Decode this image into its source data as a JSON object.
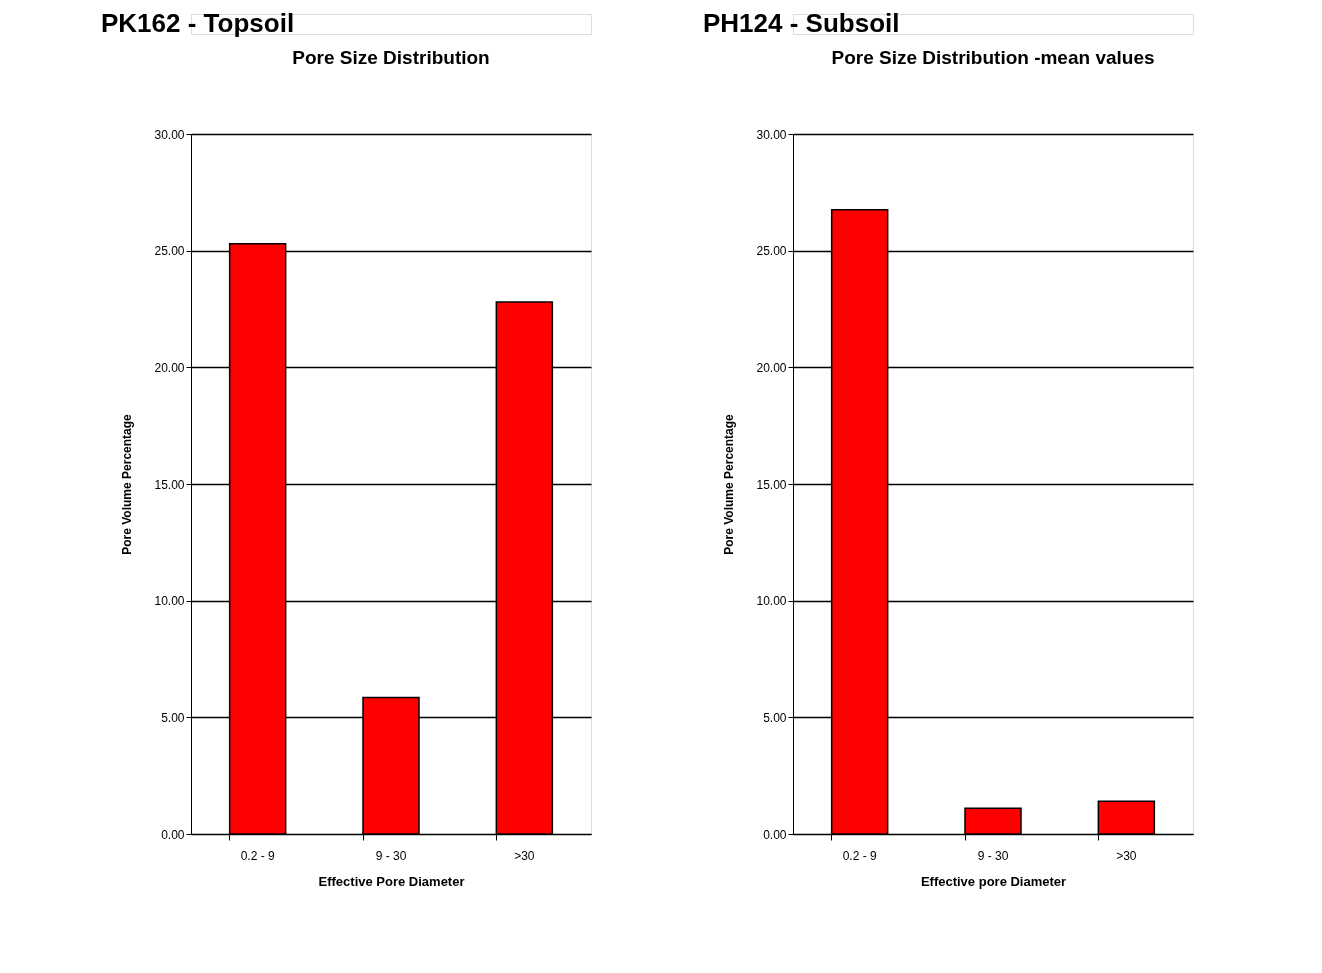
{
  "chart_data": [
    {
      "type": "bar",
      "title": "PK162 - Topsoil",
      "subtitle": "Pore Size Distribution",
      "xlabel": "Effective Pore Diameter",
      "ylabel": "Pore Volume Percentage",
      "categories": [
        "0.2 - 9",
        "9 - 30",
        ">30"
      ],
      "values": [
        25.3,
        5.85,
        22.8
      ],
      "color": "#ff0000",
      "ylim": [
        0,
        30
      ],
      "yticks": [
        {
          "value": 0,
          "label": "0.00"
        },
        {
          "value": 5,
          "label": "5.00"
        },
        {
          "value": 10,
          "label": "10.00"
        },
        {
          "value": 15,
          "label": "15.00"
        },
        {
          "value": 20,
          "label": "20.00"
        },
        {
          "value": 25,
          "label": "25.00"
        },
        {
          "value": 30,
          "label": "30.00"
        }
      ],
      "grid": "y"
    },
    {
      "type": "bar",
      "title": "PH124 - Subsoil",
      "subtitle": "Pore Size Distribution -mean values",
      "xlabel": "Effective pore Diameter",
      "ylabel": "Pore Volume Percentage",
      "categories": [
        "0.2 - 9",
        "9 - 30",
        ">30"
      ],
      "values": [
        26.75,
        1.1,
        1.4
      ],
      "color": "#ff0000",
      "ylim": [
        0,
        30
      ],
      "yticks": [
        {
          "value": 0,
          "label": "0.00"
        },
        {
          "value": 5,
          "label": "5.00"
        },
        {
          "value": 10,
          "label": "10.00"
        },
        {
          "value": 15,
          "label": "15.00"
        },
        {
          "value": 20,
          "label": "20.00"
        },
        {
          "value": 25,
          "label": "25.00"
        },
        {
          "value": 30,
          "label": "30.00"
        }
      ],
      "grid": "y"
    }
  ]
}
